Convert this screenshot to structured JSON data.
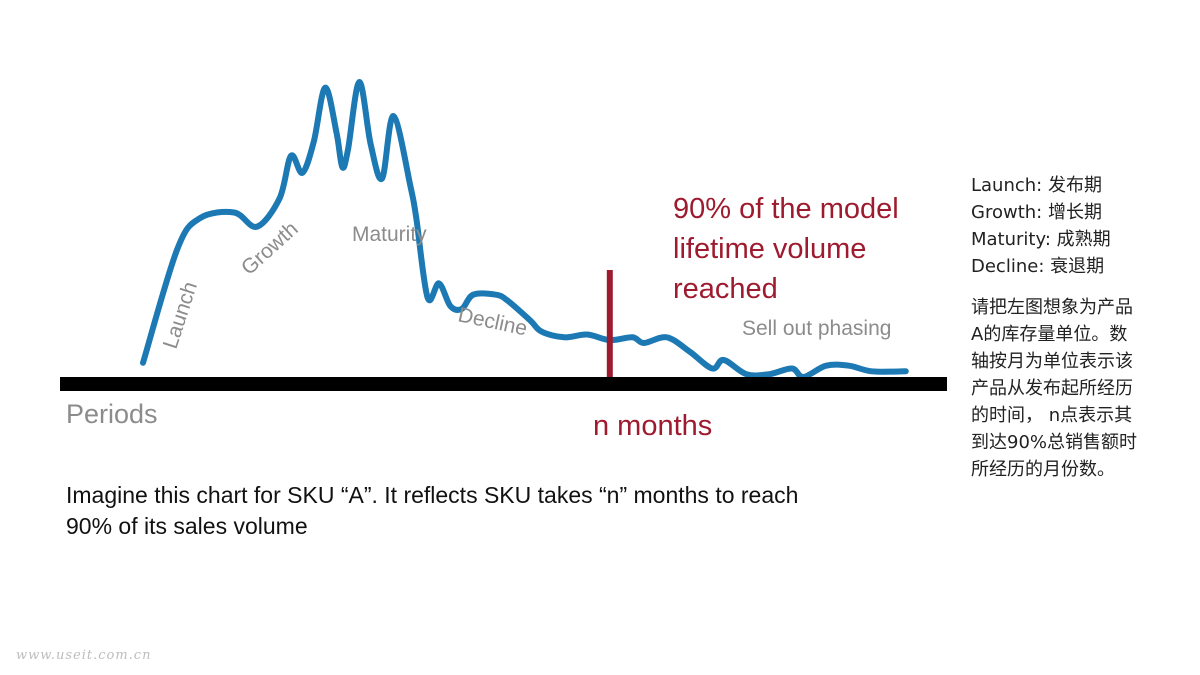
{
  "chart_data": {
    "type": "line",
    "series": [
      {
        "values": [
          [
            0,
            5
          ],
          [
            3,
            45
          ],
          [
            5,
            56
          ],
          [
            8,
            58
          ],
          [
            10,
            53
          ],
          [
            12,
            63
          ],
          [
            13,
            78
          ],
          [
            14,
            72
          ],
          [
            15,
            83
          ],
          [
            16,
            102
          ],
          [
            17,
            86
          ],
          [
            17.5,
            74
          ],
          [
            18,
            80
          ],
          [
            19,
            104
          ],
          [
            20,
            82
          ],
          [
            21,
            70
          ],
          [
            22,
            92
          ],
          [
            23.5,
            67
          ],
          [
            24,
            56
          ],
          [
            25,
            28
          ],
          [
            26,
            33
          ],
          [
            27,
            25
          ],
          [
            28,
            24
          ],
          [
            29,
            29
          ],
          [
            31,
            29
          ],
          [
            32,
            27
          ],
          [
            34,
            20
          ],
          [
            35,
            16
          ],
          [
            37,
            14
          ],
          [
            39,
            15
          ],
          [
            41,
            13
          ],
          [
            43,
            14
          ],
          [
            44,
            12
          ],
          [
            46,
            14
          ],
          [
            48,
            9
          ],
          [
            50,
            3
          ],
          [
            51,
            6
          ],
          [
            53,
            1
          ],
          [
            55,
            1
          ],
          [
            57,
            3
          ],
          [
            58,
            0
          ],
          [
            60,
            4
          ],
          [
            62,
            4
          ],
          [
            64,
            2
          ],
          [
            67,
            2
          ]
        ]
      }
    ],
    "xlim": [
      0,
      70
    ],
    "ylim": [
      0,
      110
    ],
    "xlabel": "Periods",
    "ylabel": "",
    "phase_labels": [
      "Launch",
      "Growth",
      "Maturity",
      "Decline",
      "Sell out phasing"
    ],
    "marker": {
      "x": 41,
      "label_lines": [
        "90% of the model",
        "lifetime volume",
        "reached"
      ],
      "axis_label": "n months"
    },
    "colors": {
      "line": "#1c79b3",
      "marker": "#9e1b2f",
      "axis": "#000000",
      "phase_labels": "#8c8c8c",
      "xlabel": "#8c8c8c"
    }
  },
  "caption": {
    "lines": [
      "Imagine this chart for SKU “A”. It reflects SKU takes “n” months to reach",
      "90% of its sales volume"
    ]
  },
  "side_panel": {
    "legend": [
      "Launch: 发布期",
      "Growth: 增长期",
      "Maturity: 成熟期",
      "Decline: 衰退期"
    ],
    "explanation_lines": [
      "请把左图想象为产品",
      "A的库存量单位。数",
      "轴按月为单位表示该",
      "产品从发布起所经历",
      "的时间， n点表示其",
      "到达90%总销售额时",
      "所经历的月份数。"
    ]
  },
  "watermark": "www.useit.com.cn"
}
